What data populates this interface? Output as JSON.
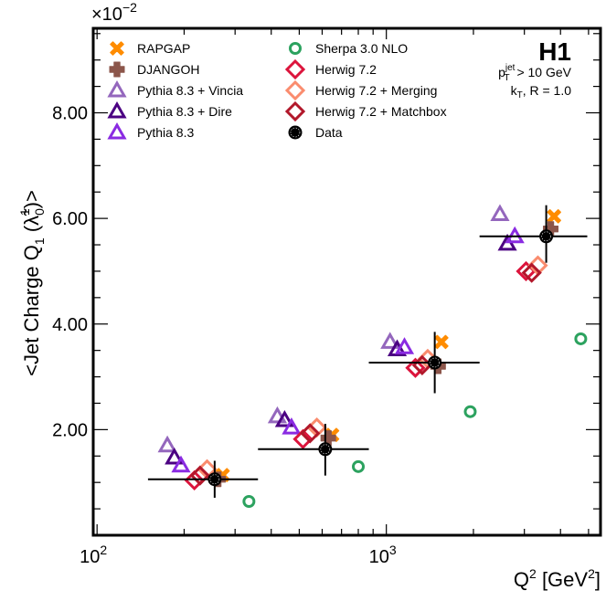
{
  "chart_data": {
    "type": "scatter",
    "title": "",
    "xlabel": "Q² [GeV²]",
    "xlabel_parts": {
      "base": "Q",
      "sup": "2",
      "rest": " [GeV",
      "sup2": "2",
      "end": "]"
    },
    "ylabel": "<Jet Charge Q₁ (λ̃₀¹)>",
    "ylabel_parts": {
      "pre": "<Jet Charge Q",
      "sub1": "1",
      "mid": " (λ̃",
      "sub2": "0",
      "sup2": "1",
      "end": ")>"
    },
    "y_multiplier": "×10",
    "y_multiplier_exp": "−2",
    "x_scale": "log",
    "xlim": [
      97,
      5500
    ],
    "ylim": [
      0,
      9.6
    ],
    "x_ticks": [
      {
        "value": 100,
        "base": "10",
        "exp": "2"
      },
      {
        "value": 1000,
        "base": "10",
        "exp": "3"
      }
    ],
    "y_ticks": [
      {
        "value": 2,
        "label": "2.00"
      },
      {
        "value": 4,
        "label": "4.00"
      },
      {
        "value": 6,
        "label": "6.00"
      },
      {
        "value": 8,
        "label": "8.00"
      }
    ],
    "grid": false,
    "legend_placement": "top-left (two columns)",
    "annotations": {
      "experiment": "H1",
      "cut_pt": {
        "p": "p",
        "sub": "T",
        "sup": "jet",
        "rest": " > 10 GeV"
      },
      "cut_alg": {
        "k": "k",
        "sub": "T",
        "rest": ", R = 1.0"
      }
    },
    "x_bins": [
      [
        150,
        360
      ],
      [
        360,
        870
      ],
      [
        870,
        2100
      ],
      [
        2100,
        4950
      ]
    ],
    "data": {
      "name": "Data",
      "x": [
        255,
        615,
        1470,
        3570
      ],
      "y": [
        1.06,
        1.63,
        3.27,
        5.66
      ],
      "yerr_up": [
        0.35,
        0.48,
        0.58,
        0.59
      ],
      "yerr_down": [
        0.35,
        0.5,
        0.58,
        0.5
      ]
    },
    "series": [
      {
        "name": "RAPGAP",
        "marker": "x-filled",
        "color": "#ff8c00",
        "x": [
          272,
          650,
          1550,
          3800
        ],
        "y": [
          1.14,
          1.9,
          3.66,
          6.04
        ]
      },
      {
        "name": "DJANGOH",
        "marker": "plus-filled",
        "color": "#8c564b",
        "x": [
          262,
          630,
          1510,
          3700
        ],
        "y": [
          1.06,
          1.84,
          3.2,
          5.8
        ]
      },
      {
        "name": "Pythia 8.3 + Vincia",
        "marker": "triangle-open",
        "color": "#9467bd",
        "x": [
          175,
          420,
          1030,
          2470
        ],
        "y": [
          1.7,
          2.25,
          3.66,
          6.08
        ]
      },
      {
        "name": "Pythia 8.3 + Dire",
        "marker": "triangle-open",
        "color": "#4b0082",
        "x": [
          185,
          445,
          1090,
          2620
        ],
        "y": [
          1.47,
          2.18,
          3.52,
          5.52
        ]
      },
      {
        "name": "Pythia 8.3",
        "marker": "triangle-open",
        "color": "#8a2be2",
        "x": [
          195,
          470,
          1155,
          2780
        ],
        "y": [
          1.32,
          2.04,
          3.56,
          5.66
        ]
      },
      {
        "name": "Sherpa 3.0 NLO",
        "marker": "circle-open",
        "color": "#2ca25f",
        "x": [
          335,
          800,
          1950,
          4700
        ],
        "y": [
          0.64,
          1.3,
          2.34,
          3.72
        ]
      },
      {
        "name": "Herwig 7.2",
        "marker": "diamond-open",
        "color": "#dc143c",
        "x": [
          217,
          515,
          1260,
          3040
        ],
        "y": [
          1.04,
          1.82,
          3.17,
          5.0
        ]
      },
      {
        "name": "Herwig 7.2 + Merging",
        "marker": "diamond-open",
        "color": "#fa8c6e",
        "x": [
          240,
          575,
          1390,
          3340
        ],
        "y": [
          1.25,
          2.04,
          3.34,
          5.11
        ]
      },
      {
        "name": "Herwig 7.2 + Matchbox",
        "marker": "diamond-open",
        "color": "#b2182b",
        "x": [
          227,
          545,
          1330,
          3180
        ],
        "y": [
          1.13,
          1.93,
          3.22,
          4.97
        ]
      }
    ],
    "legend": [
      {
        "label": "RAPGAP",
        "marker": "x-filled",
        "color": "#ff8c00"
      },
      {
        "label": "DJANGOH",
        "marker": "plus-filled",
        "color": "#8c564b"
      },
      {
        "label": "Pythia 8.3 + Vincia",
        "marker": "triangle-open",
        "color": "#9467bd"
      },
      {
        "label": "Pythia 8.3 + Dire",
        "marker": "triangle-open",
        "color": "#4b0082"
      },
      {
        "label": "Pythia 8.3",
        "marker": "triangle-open",
        "color": "#8a2be2"
      },
      {
        "label": "Sherpa 3.0 NLO",
        "marker": "circle-open",
        "color": "#2ca25f"
      },
      {
        "label": "Herwig 7.2",
        "marker": "diamond-open",
        "color": "#dc143c"
      },
      {
        "label": "Herwig 7.2 + Merging",
        "marker": "diamond-open",
        "color": "#fa8c6e"
      },
      {
        "label": "Herwig 7.2 + Matchbox",
        "marker": "diamond-open",
        "color": "#b2182b"
      },
      {
        "label": "Data",
        "marker": "circle-filled",
        "color": "#000000"
      }
    ]
  }
}
